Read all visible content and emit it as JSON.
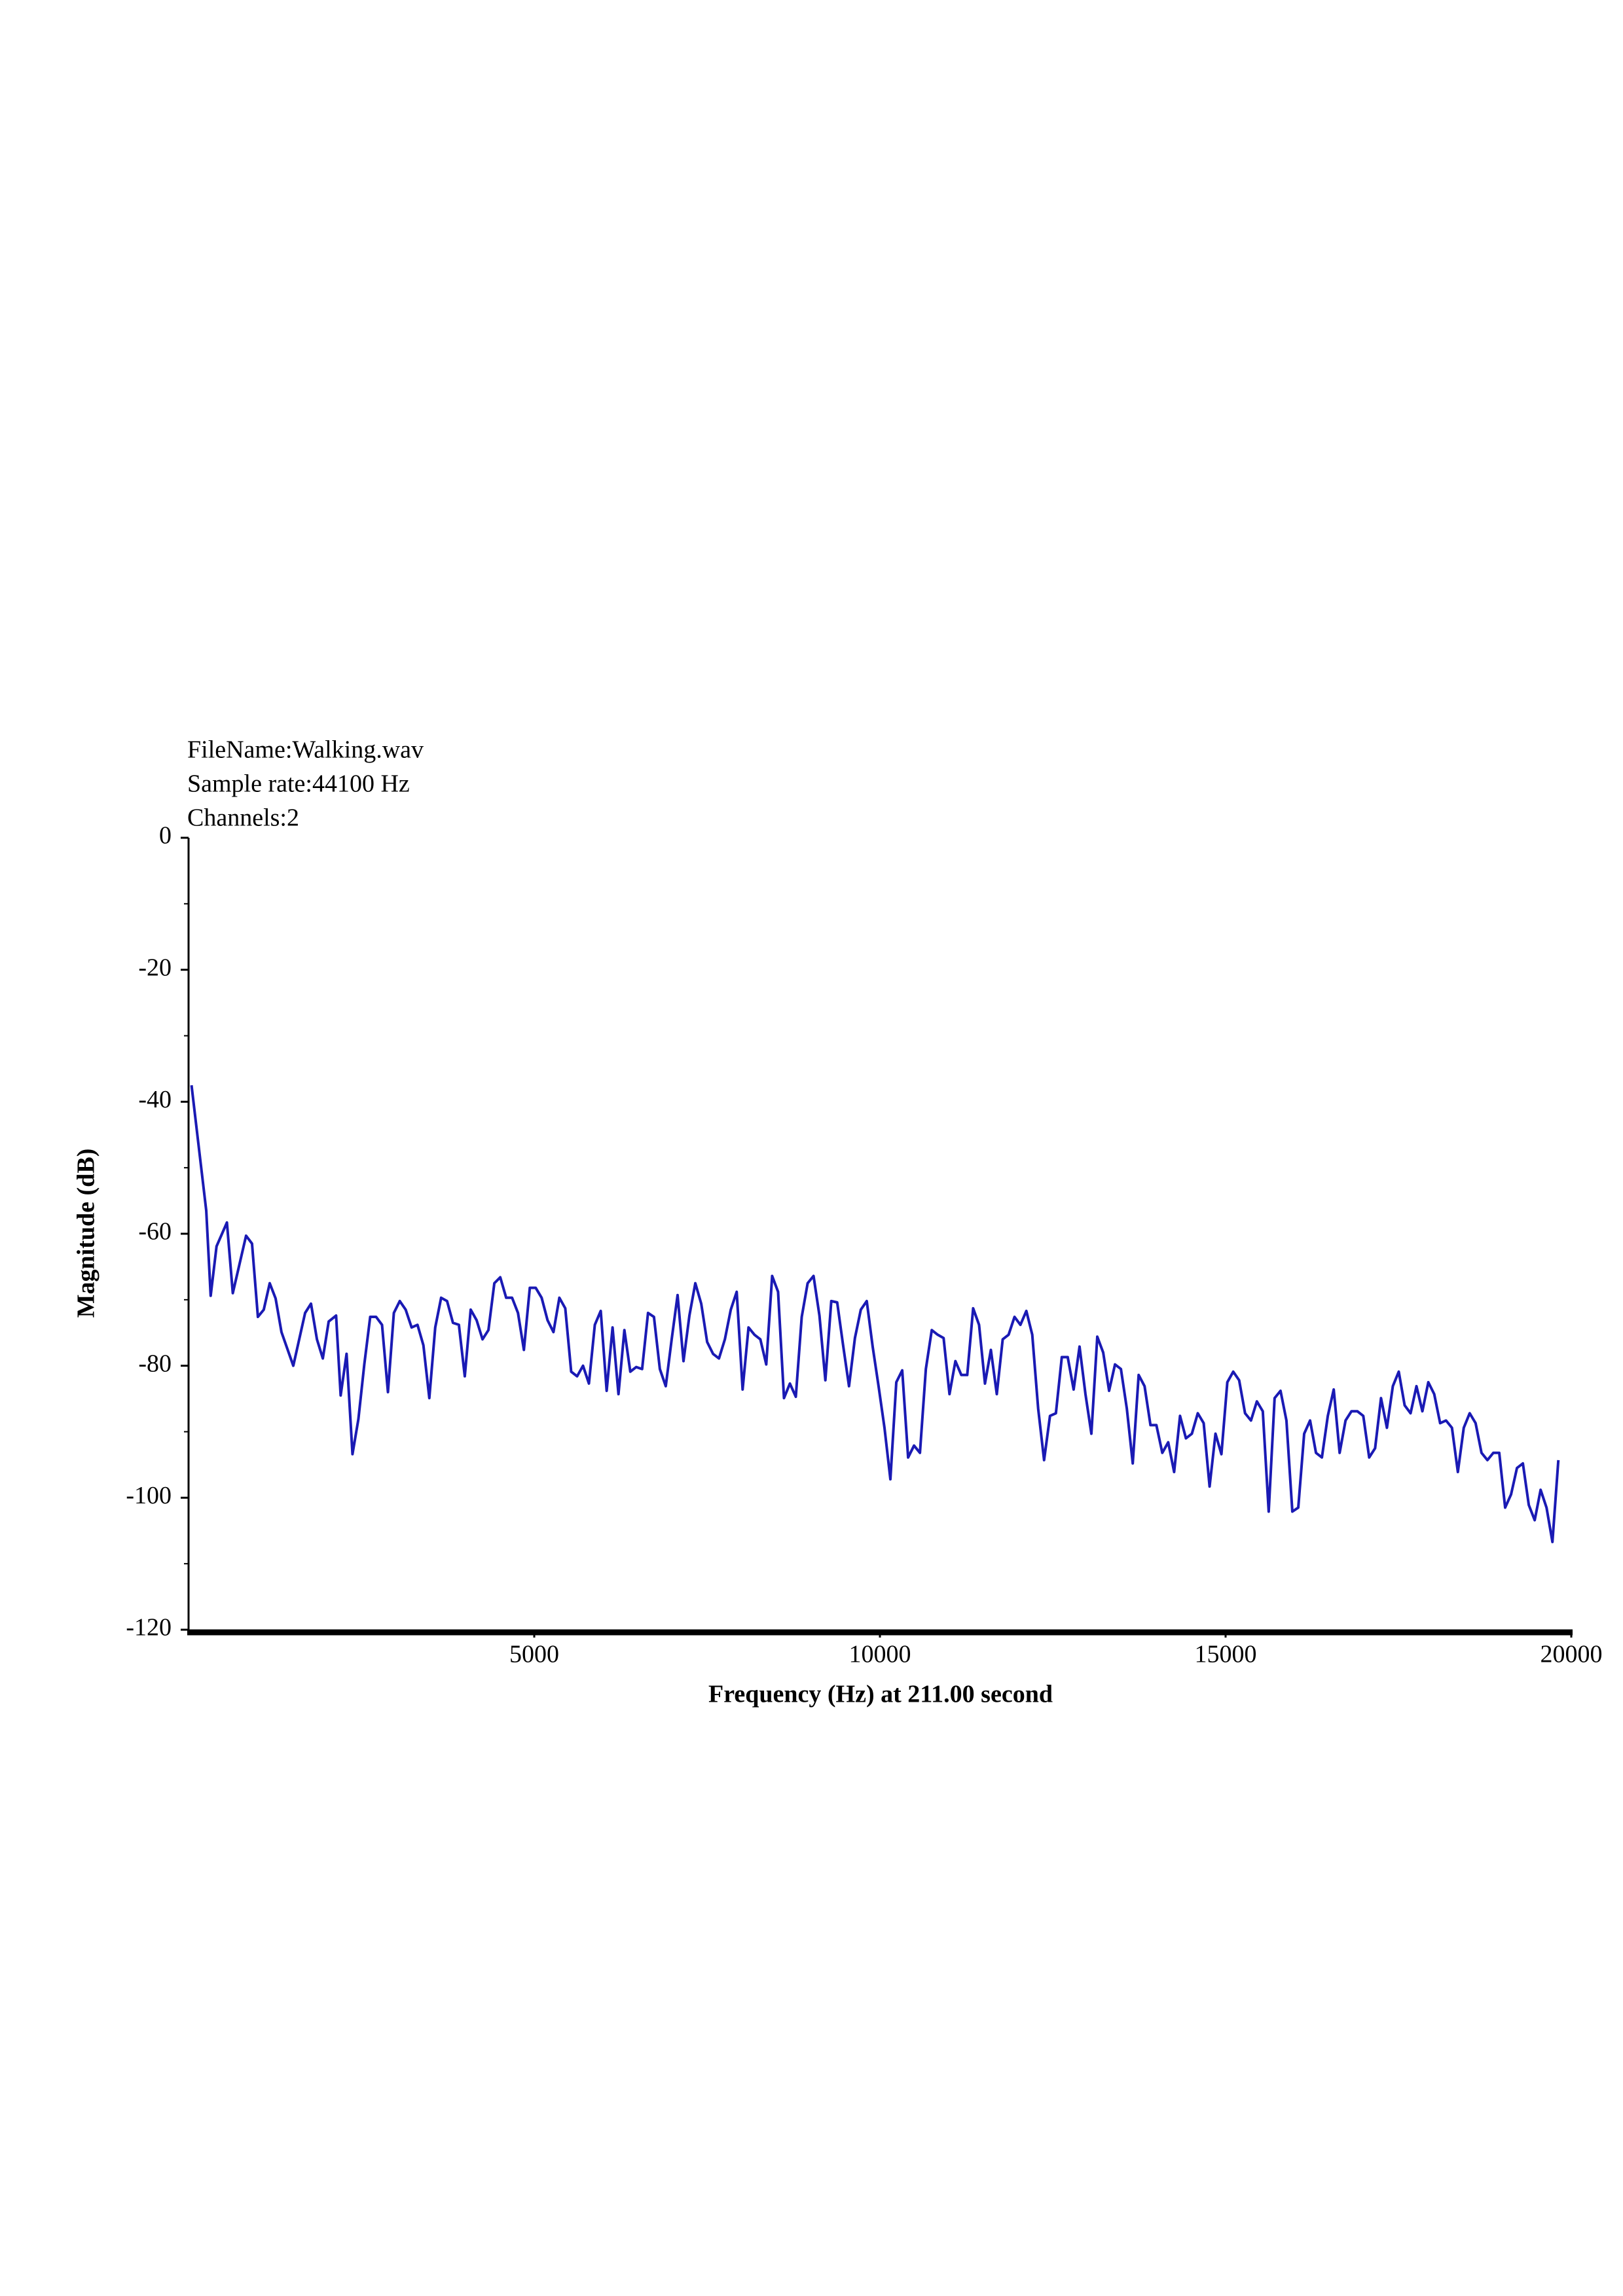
{
  "chart_data": {
    "type": "line",
    "annotations": [
      "FileName:Walking.wav",
      "Sample rate:44100 Hz",
      "Channels:2"
    ],
    "xlabel": "Frequency (Hz) at 211.00 second",
    "ylabel": "Magnitude (dB)",
    "color": "#1a1ab4",
    "xlim": [
      0,
      20000
    ],
    "xticks": [
      5000,
      10000,
      15000,
      20000
    ],
    "ylim": [
      -120,
      0
    ],
    "yticks": [
      0,
      -20,
      -40,
      -60,
      -80,
      -100,
      -120
    ],
    "x": [
      43,
      256,
      320,
      405,
      555,
      640,
      832,
      918,
      1003,
      1088,
      1174,
      1259,
      1344,
      1515,
      1686,
      1771,
      1857,
      1942,
      2027,
      2134,
      2200,
      2285.5,
      2371,
      2456.5,
      2542,
      2627.5,
      2713,
      2798.5,
      2884,
      2969.5,
      3055,
      3140.5,
      3226,
      3311.5,
      3397,
      3482.5,
      3568,
      3653.5,
      3739,
      3824.5,
      3910,
      3995.5,
      4081,
      4166.5,
      4252,
      4337.5,
      4423,
      4508.5,
      4594,
      4679.5,
      4765,
      4850.5,
      4936,
      5021.5,
      5107,
      5192.5,
      5278,
      5363.5,
      5449,
      5534.5,
      5620,
      5705.5,
      5791,
      5876.5,
      5962,
      6047.5,
      6133,
      6218.5,
      6304,
      6389.5,
      6475,
      6560.5,
      6646,
      6731.5,
      6817,
      6902.5,
      6988,
      7073.5,
      7159,
      7244.5,
      7330,
      7415.5,
      7501,
      7586.5,
      7672,
      7757.5,
      7843,
      7928.5,
      8014,
      8099.5,
      8185,
      8270.5,
      8356,
      8441.5,
      8527,
      8612.5,
      8698,
      8783.5,
      8869,
      8954.5,
      9040,
      9125.5,
      9211,
      9296.5,
      9382,
      9467.5,
      9553,
      9638.5,
      9724,
      9809.5,
      9895,
      9980.5,
      10066,
      10151.5,
      10237,
      10322.5,
      10408,
      10493.5,
      10579,
      10664.5,
      10750,
      10835.5,
      10921,
      11006.5,
      11092,
      11177.5,
      11263,
      11348.5,
      11434,
      11519.5,
      11605,
      11690.5,
      11776,
      11861.5,
      11947,
      12032.5,
      12118,
      12203.5,
      12289,
      12374.5,
      12460,
      12545.5,
      12631,
      12716.5,
      12802,
      12887.5,
      12973,
      13058.5,
      13144,
      13229.5,
      13315,
      13400.5,
      13486,
      13571.5,
      13657,
      13742.5,
      13828,
      13913.5,
      13999,
      14084.5,
      14170,
      14255.5,
      14341,
      14426.5,
      14512,
      14597.5,
      14683,
      14768.5,
      14854,
      14939.5,
      15025,
      15110.5,
      15196,
      15281.5,
      15367,
      15452.5,
      15538,
      15623.5,
      15709,
      15794.5,
      15880,
      15965.5,
      16051,
      16136.5,
      16222,
      16307.5,
      16393,
      16478.5,
      16564,
      16649.5,
      16735,
      16820.5,
      16906,
      16991.5,
      17077,
      17162.5,
      17248,
      17333.5,
      17419,
      17504.5,
      17590,
      17675.5,
      17761,
      17846.5,
      17932,
      18017.5,
      18103,
      18188.5,
      18274,
      18359.5,
      18445,
      18530.5,
      18616,
      18701.5,
      18787,
      18872.5,
      18958,
      19043.5,
      19129,
      19214.5,
      19300,
      19385.5,
      19471,
      19556.5,
      19642,
      19727.5,
      19813
    ],
    "values": [
      -37.5,
      -56.5,
      -69.4,
      -61.9,
      -58.3,
      -69.0,
      -60.3,
      -61.5,
      -72.6,
      -71.5,
      -67.5,
      -69.8,
      -74.9,
      -80.0,
      -72.0,
      -70.6,
      -76.0,
      -78.9,
      -73.3,
      -72.4,
      -84.5,
      -78.2,
      -93.4,
      -88.1,
      -79.8,
      -72.6,
      -72.6,
      -73.8,
      -84.0,
      -72.0,
      -70.2,
      -71.5,
      -74.2,
      -73.8,
      -76.9,
      -84.9,
      -74.2,
      -69.7,
      -70.2,
      -73.5,
      -73.8,
      -81.6,
      -71.5,
      -73.1,
      -76.0,
      -74.6,
      -67.5,
      -66.6,
      -69.7,
      -69.7,
      -72.0,
      -77.6,
      -68.2,
      -68.2,
      -69.7,
      -73.1,
      -74.9,
      -69.7,
      -71.3,
      -80.9,
      -81.6,
      -80.0,
      -82.7,
      -73.8,
      -71.7,
      -83.8,
      -74.2,
      -84.3,
      -74.6,
      -80.9,
      -80.2,
      -80.5,
      -72.0,
      -72.6,
      -80.5,
      -83.1,
      -76.0,
      -69.3,
      -79.3,
      -72.4,
      -67.5,
      -70.6,
      -76.4,
      -78.2,
      -78.9,
      -76.0,
      -71.5,
      -68.8,
      -83.6,
      -74.2,
      -75.3,
      -76.0,
      -79.8,
      -66.4,
      -68.8,
      -84.9,
      -82.7,
      -84.7,
      -72.6,
      -67.5,
      -66.4,
      -72.4,
      -82.2,
      -70.2,
      -70.4,
      -76.9,
      -83.1,
      -75.8,
      -71.5,
      -70.2,
      -77.1,
      -83.1,
      -89.4,
      -97.2,
      -82.5,
      -80.7,
      -93.9,
      -92.1,
      -93.2,
      -80.5,
      -74.6,
      -75.3,
      -75.8,
      -84.3,
      -79.3,
      -81.4,
      -81.4,
      -71.3,
      -73.8,
      -82.7,
      -77.6,
      -84.3,
      -76.0,
      -75.3,
      -72.6,
      -73.8,
      -71.7,
      -75.3,
      -86.5,
      -94.3,
      -87.6,
      -87.2,
      -78.7,
      -78.7,
      -83.6,
      -77.1,
      -84.3,
      -90.3,
      -75.6,
      -78.0,
      -83.8,
      -79.8,
      -80.5,
      -86.5,
      -94.8,
      -81.4,
      -83.1,
      -89.0,
      -89.0,
      -93.2,
      -91.6,
      -96.1,
      -87.6,
      -91.0,
      -90.3,
      -87.2,
      -88.7,
      -98.3,
      -90.3,
      -93.4,
      -82.5,
      -80.9,
      -82.2,
      -87.2,
      -88.3,
      -85.4,
      -86.9,
      -102.1,
      -84.9,
      -83.8,
      -88.3,
      -102.1,
      -101.5,
      -90.3,
      -88.3,
      -93.2,
      -93.9,
      -87.6,
      -83.6,
      -93.2,
      -88.3,
      -86.9,
      -86.9,
      -87.6,
      -93.9,
      -92.5,
      -84.9,
      -89.4,
      -83.1,
      -80.9,
      -86.0,
      -87.2,
      -83.1,
      -86.9,
      -82.5,
      -84.3,
      -88.7,
      -88.3,
      -89.4,
      -96.1,
      -89.4,
      -87.2,
      -88.7,
      -93.2,
      -94.3,
      -93.2,
      -93.2,
      -101.5,
      -99.5,
      -95.5,
      -94.8,
      -101.1,
      -103.4,
      -98.8,
      -101.5,
      -106.7,
      -94.3
    ]
  }
}
